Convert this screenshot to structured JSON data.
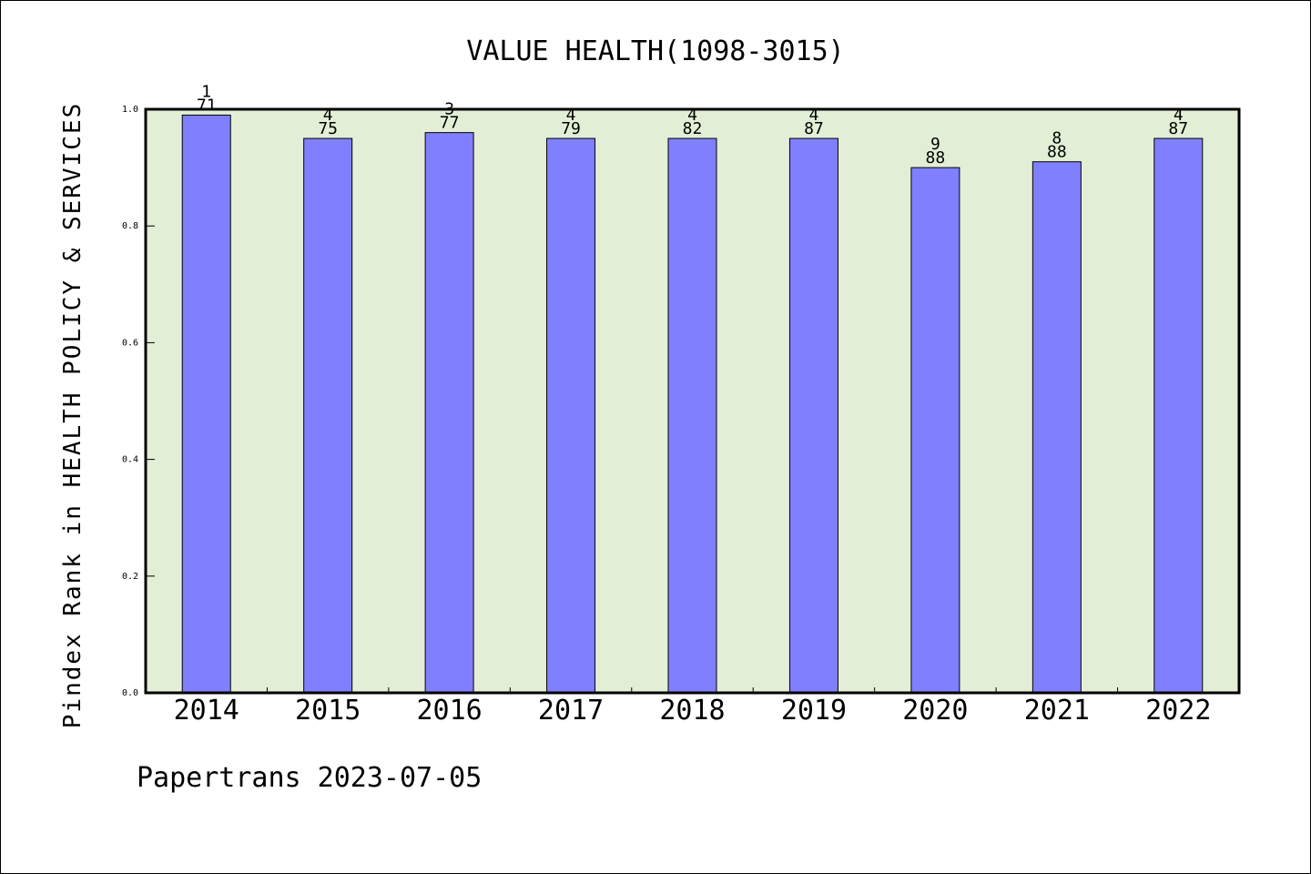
{
  "chart_data": {
    "type": "bar",
    "title": "VALUE HEALTH(1098-3015)",
    "ylabel": "Pindex Rank in HEALTH POLICY & SERVICES",
    "xlabel": "",
    "categories": [
      "2014",
      "2015",
      "2016",
      "2017",
      "2018",
      "2019",
      "2020",
      "2021",
      "2022"
    ],
    "values": [
      0.99,
      0.95,
      0.96,
      0.95,
      0.95,
      0.95,
      0.9,
      0.91,
      0.95
    ],
    "rank_labels": [
      "1",
      "4",
      "3",
      "4",
      "4",
      "4",
      "9",
      "8",
      "4"
    ],
    "total_labels": [
      "71",
      "75",
      "77",
      "79",
      "82",
      "87",
      "88",
      "88",
      "87"
    ],
    "ylim": [
      0.0,
      1.0
    ],
    "yticks": [
      "0.0",
      "0.2",
      "0.4",
      "0.6",
      "0.8",
      "1.0"
    ],
    "grid": false,
    "colors": {
      "bar_fill": "#8080ff",
      "plot_background": "#e2efd6",
      "axis": "#000000"
    }
  },
  "footer": {
    "text": "Papertrans 2023-07-05"
  }
}
